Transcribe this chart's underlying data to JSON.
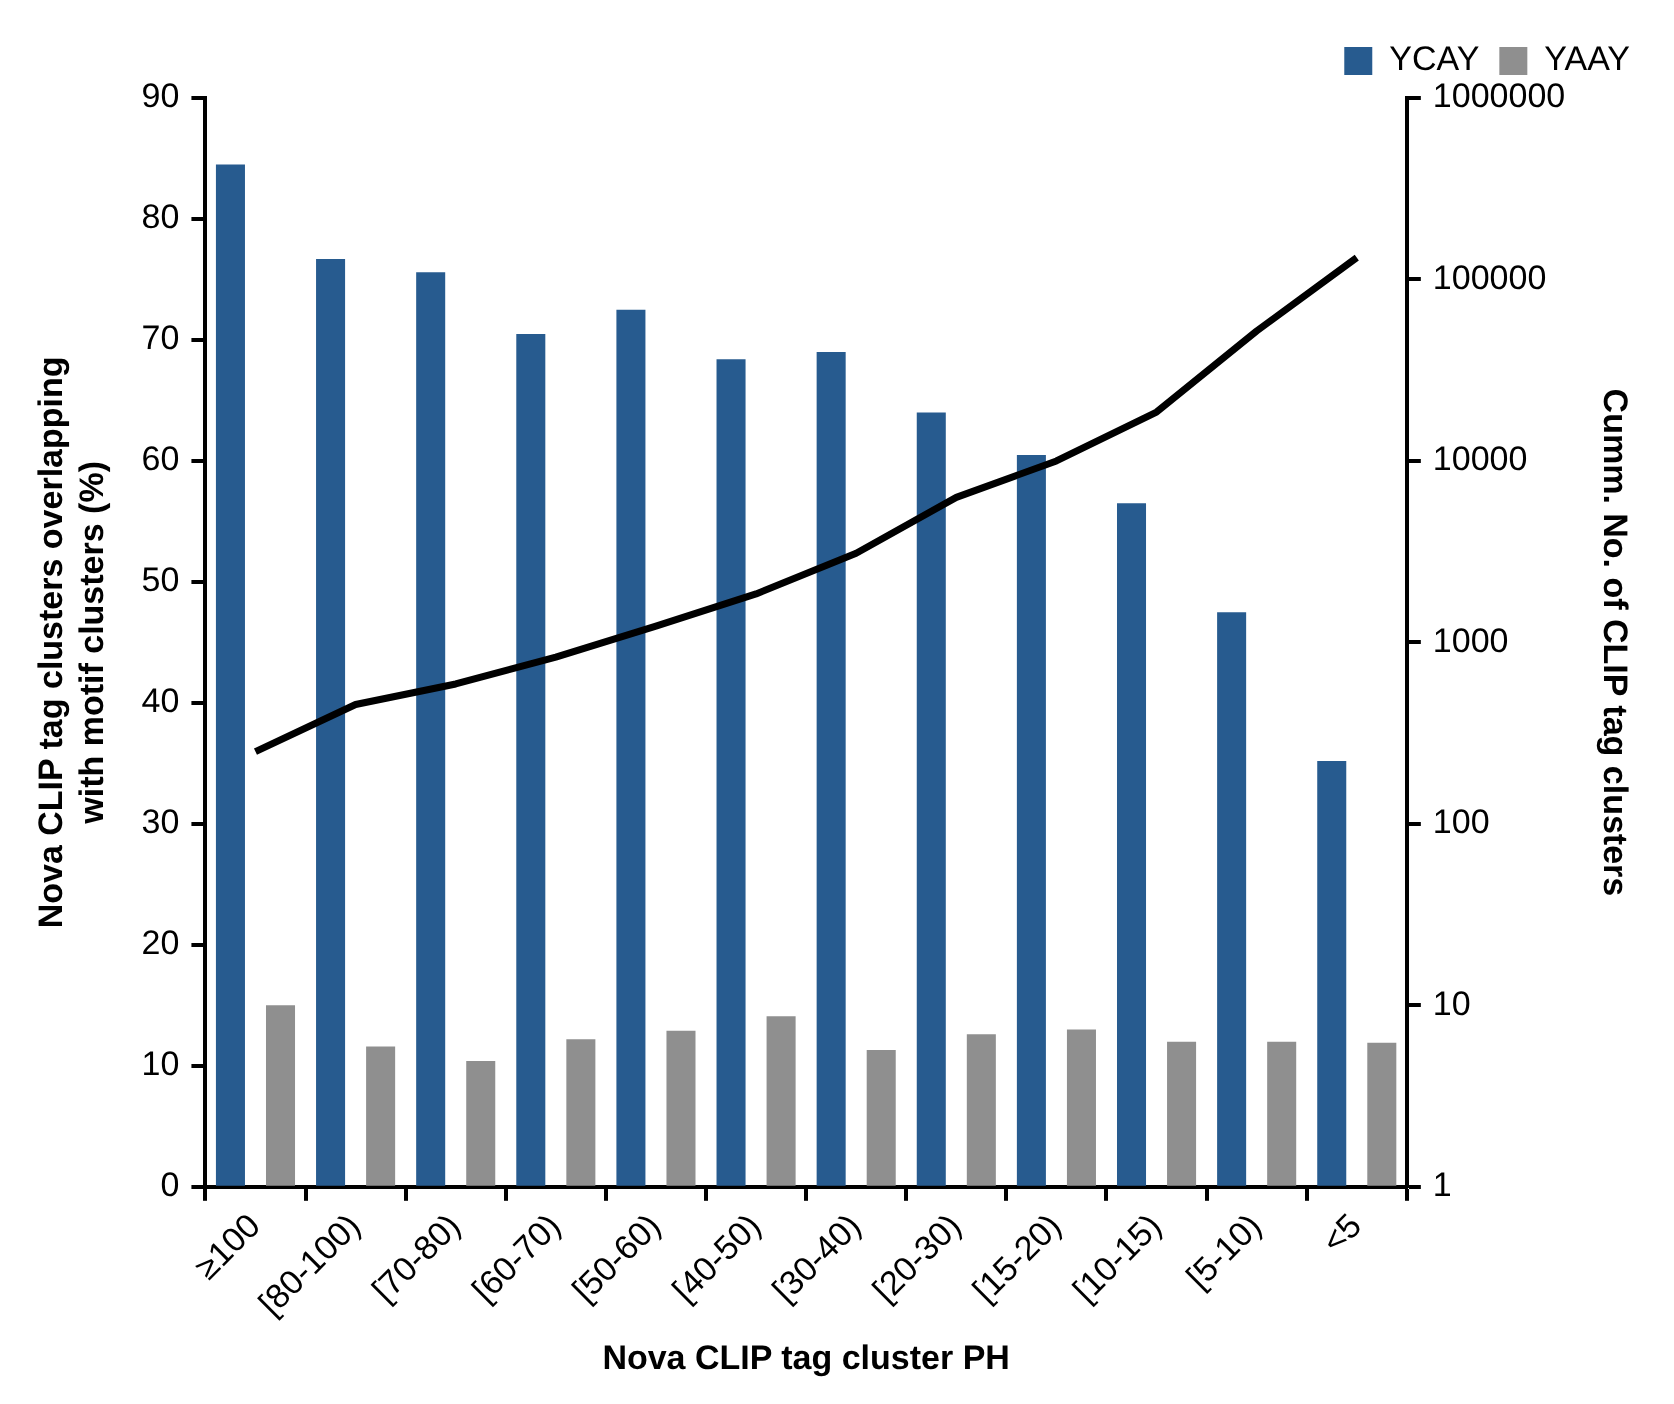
{
  "chart_data": {
    "type": "bar",
    "xlabel": "Nova CLIP tag cluster PH",
    "ylabel": "Nova CLIP tag clusters overlapping\nwith motif clusters (%)",
    "y2label": "Cumm. No. of CLIP tag clusters",
    "categories": [
      "≥100",
      "[80-100)",
      "[70-80)",
      "[60-70)",
      "[50-60)",
      "[40-50)",
      "[30-40)",
      "[20-30)",
      "[15-20)",
      "[10-15)",
      "[5-10)",
      "<5"
    ],
    "series": [
      {
        "name": "YCAY",
        "color": "#275b8f",
        "values": [
          84.5,
          76.7,
          75.6,
          70.5,
          72.5,
          68.4,
          69,
          64,
          60.5,
          56.5,
          47.5,
          35.2
        ]
      },
      {
        "name": "YAAY",
        "color": "#8f8f8f",
        "values": [
          15,
          11.6,
          10.4,
          12.2,
          12.9,
          14.1,
          11.3,
          12.6,
          13,
          12,
          12,
          11.9
        ]
      },
      {
        "type": "line",
        "axis": "y2",
        "color": "#000000",
        "values": [
          250,
          455,
          590,
          830,
          1230,
          1850,
          3100,
          6300,
          10000,
          18600,
          52000,
          132000
        ]
      }
    ],
    "ylim": [
      0,
      90
    ],
    "yticks": [
      0,
      10,
      20,
      30,
      40,
      50,
      60,
      70,
      80,
      90
    ],
    "y2lim": [
      1,
      1000000
    ],
    "y2ticks": [
      1,
      10,
      100,
      1000,
      10000,
      100000,
      1000000
    ],
    "log": "y2",
    "grid": false,
    "legend": "top right",
    "marker": "none"
  }
}
